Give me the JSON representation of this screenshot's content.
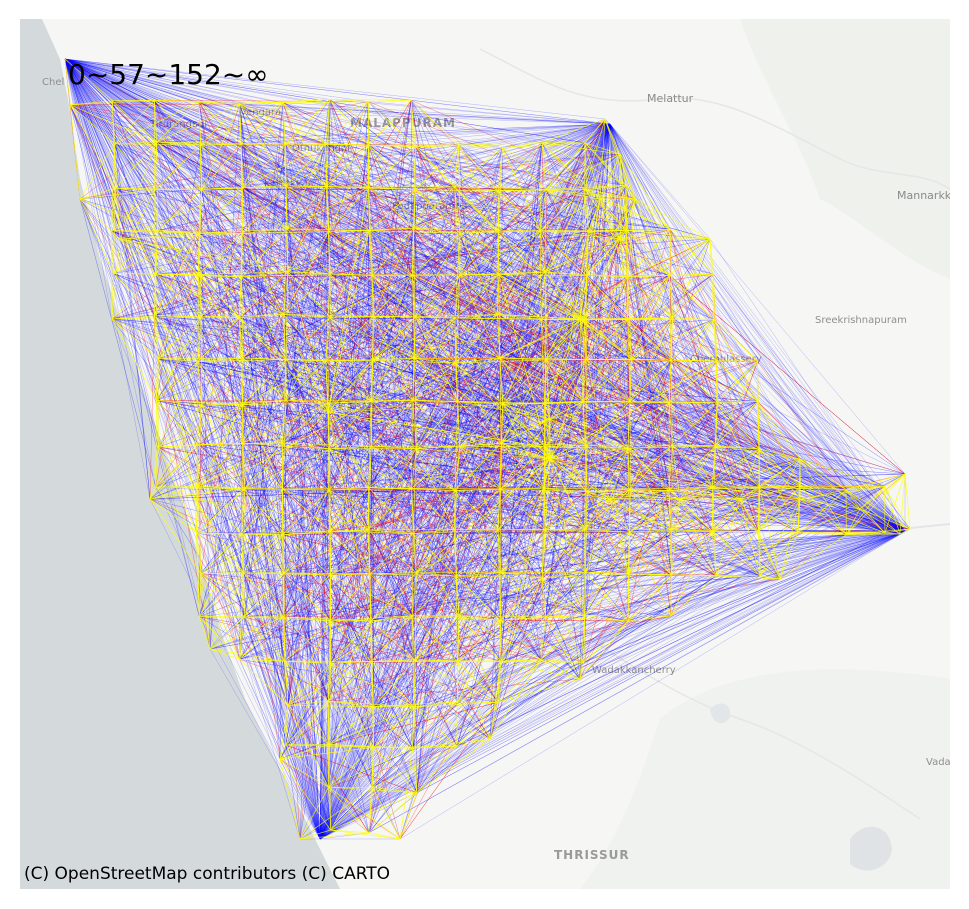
{
  "legend": {
    "thresholds_label": "0~57~152~∞"
  },
  "attribution": "(C) OpenStreetMap contributors (C) CARTO",
  "places": [
    {
      "key": "chel",
      "label": "Chel"
    },
    {
      "key": "tirurangadi",
      "label": "Tirurangadi"
    },
    {
      "key": "vengara",
      "label": "Vengara"
    },
    {
      "key": "malappuram",
      "label": "MALAPPURAM"
    },
    {
      "key": "othukungal",
      "label": "Othukungal"
    },
    {
      "key": "kottakkal",
      "label": "Kottakkal"
    },
    {
      "key": "padapparamba",
      "label": "Padapparamba"
    },
    {
      "key": "melattur",
      "label": "Melattur"
    },
    {
      "key": "mannarkk",
      "label": "Mannarkk"
    },
    {
      "key": "sreekrishnapuram",
      "label": "Sreekrishnapuram"
    },
    {
      "key": "cherpulassery",
      "label": "Cherpulassery"
    },
    {
      "key": "wadakkancherry",
      "label": "Wadakkancherry"
    },
    {
      "key": "thrissur",
      "label": "THRISSUR"
    },
    {
      "key": "vada",
      "label": "Vada"
    }
  ],
  "colors": {
    "sea": "#d4dadc",
    "land": "#f6f6f4",
    "edge_low": "#0000ff",
    "edge_mid": "#ff0000",
    "edge_high": "#ffff00"
  }
}
